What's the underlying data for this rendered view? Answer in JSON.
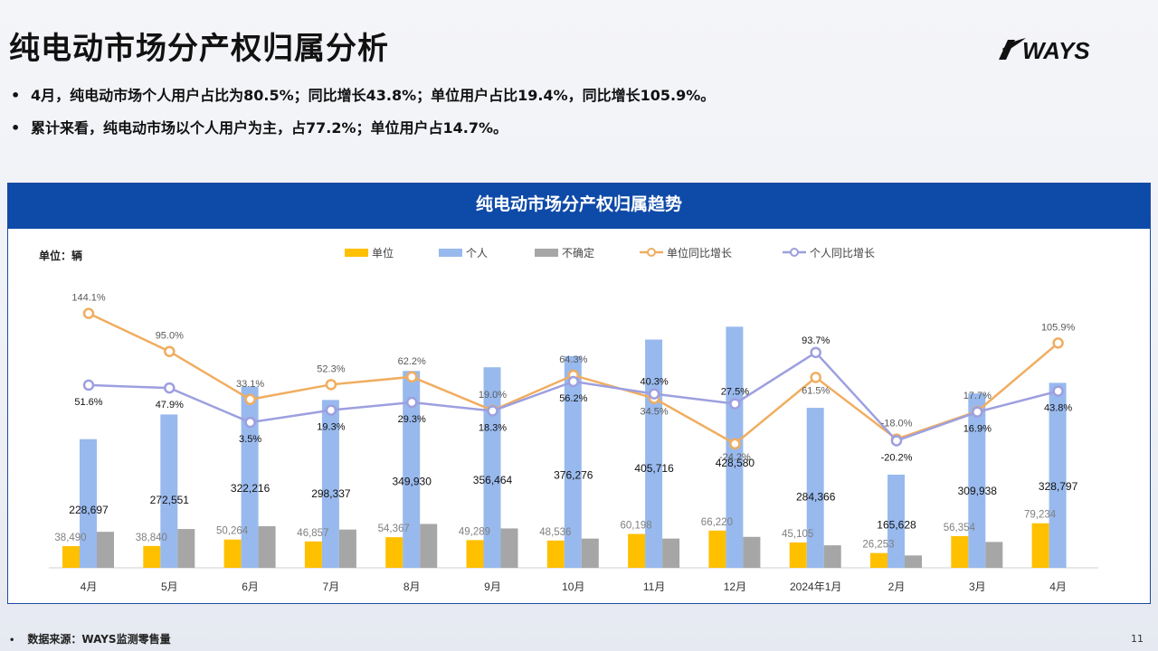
{
  "page": {
    "title": "纯电动市场分产权归属分析",
    "bullets": [
      "4月，纯电动市场个人用户占比为80.5%；同比增长43.8%；单位用户占比19.4%，同比增长105.9%。",
      "累计来看，纯电动市场以个人用户为主，占77.2%；单位用户占14.7%。"
    ],
    "logo_text": "WAYS",
    "footer_source": "数据来源：WAYS监测零售量",
    "page_number": "11"
  },
  "chart_data": {
    "type": "bar",
    "title": "纯电动市场分产权归属趋势",
    "unit_label": "单位：辆",
    "categories": [
      "4月",
      "5月",
      "6月",
      "7月",
      "8月",
      "9月",
      "10月",
      "11月",
      "12月",
      "2024年1月",
      "2月",
      "3月",
      "4月"
    ],
    "bar_max": 450000,
    "line_range": [
      -50,
      160
    ],
    "series": [
      {
        "name": "单位",
        "kind": "bar",
        "color": "#ffc000",
        "values": [
          38490,
          38840,
          50264,
          46857,
          54367,
          49289,
          48536,
          60198,
          66220,
          45105,
          26253,
          56354,
          79234
        ],
        "labels": [
          "38,490",
          "38,840",
          "50,264",
          "46,857",
          "54,367",
          "49,289",
          "48,536",
          "60,198",
          "66,220",
          "45,105",
          "26,253",
          "56,354",
          "79,234"
        ]
      },
      {
        "name": "个人",
        "kind": "bar",
        "color": "#98b9ed",
        "values": [
          228697,
          272551,
          322216,
          298337,
          349930,
          356464,
          376276,
          405716,
          428580,
          284366,
          165628,
          309938,
          328797
        ],
        "labels": [
          "228,697",
          "272,551",
          "322,216",
          "298,337",
          "349,930",
          "356,464",
          "376,276",
          "405,716",
          "428,580",
          "284,366",
          "165,628",
          "309,938",
          "328,797"
        ]
      },
      {
        "name": "不确定",
        "kind": "bar",
        "color": "#a6a6a6",
        "values": [
          64000,
          69000,
          74000,
          68000,
          78000,
          70000,
          52000,
          52000,
          55000,
          40000,
          22000,
          46000,
          null
        ],
        "labels": []
      },
      {
        "name": "单位同比增长",
        "kind": "line",
        "color": "#f0ad60",
        "values": [
          144.1,
          95.0,
          33.1,
          52.3,
          62.2,
          19.0,
          64.3,
          34.5,
          -24.2,
          61.5,
          -18.0,
          17.7,
          105.9
        ],
        "labels": [
          "144.1%",
          "95.0%",
          "33.1%",
          "52.3%",
          "62.2%",
          "19.0%",
          "64.3%",
          "34.5%",
          "-24.2%",
          "61.5%",
          "-18.0%",
          "17.7%",
          "105.9%"
        ]
      },
      {
        "name": "个人同比增长",
        "kind": "line",
        "color": "#9d9fdf",
        "values": [
          51.6,
          47.9,
          3.5,
          19.3,
          29.3,
          18.3,
          56.2,
          40.3,
          27.5,
          93.7,
          -20.2,
          16.9,
          43.8
        ],
        "labels": [
          "51.6%",
          "47.9%",
          "3.5%",
          "19.3%",
          "29.3%",
          "18.3%",
          "56.2%",
          "40.3%",
          "27.5%",
          "93.7%",
          "-20.2%",
          "16.9%",
          "43.8%"
        ]
      }
    ],
    "legend_position": "top",
    "grid": false
  }
}
